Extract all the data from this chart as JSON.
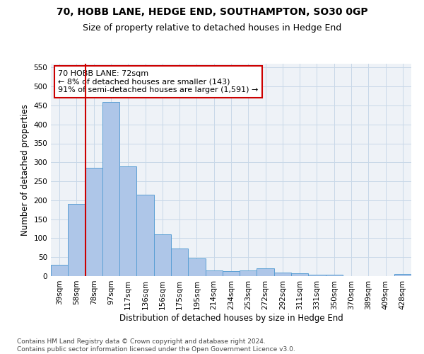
{
  "title1": "70, HOBB LANE, HEDGE END, SOUTHAMPTON, SO30 0GP",
  "title2": "Size of property relative to detached houses in Hedge End",
  "xlabel": "Distribution of detached houses by size in Hedge End",
  "ylabel": "Number of detached properties",
  "categories": [
    "39sqm",
    "58sqm",
    "78sqm",
    "97sqm",
    "117sqm",
    "136sqm",
    "156sqm",
    "175sqm",
    "195sqm",
    "214sqm",
    "234sqm",
    "253sqm",
    "272sqm",
    "292sqm",
    "311sqm",
    "331sqm",
    "350sqm",
    "370sqm",
    "389sqm",
    "409sqm",
    "428sqm"
  ],
  "values": [
    30,
    190,
    285,
    460,
    290,
    215,
    110,
    73,
    47,
    15,
    13,
    15,
    21,
    10,
    7,
    3,
    4,
    0,
    0,
    0,
    5
  ],
  "bar_color": "#aec6e8",
  "bar_edge_color": "#5a9fd4",
  "vline_x_index": 2,
  "vline_color": "#cc0000",
  "annotation_text": "70 HOBB LANE: 72sqm\n← 8% of detached houses are smaller (143)\n91% of semi-detached houses are larger (1,591) →",
  "annotation_box_color": "#ffffff",
  "annotation_box_edge": "#cc0000",
  "ylim": [
    0,
    560
  ],
  "yticks": [
    0,
    50,
    100,
    150,
    200,
    250,
    300,
    350,
    400,
    450,
    500,
    550
  ],
  "grid_color": "#c8d8e8",
  "background_color": "#eef2f7",
  "footer_text": "Contains HM Land Registry data © Crown copyright and database right 2024.\nContains public sector information licensed under the Open Government Licence v3.0.",
  "title1_fontsize": 10,
  "title2_fontsize": 9,
  "xlabel_fontsize": 8.5,
  "ylabel_fontsize": 8.5,
  "tick_fontsize": 7.5,
  "annotation_fontsize": 8,
  "footer_fontsize": 6.5
}
